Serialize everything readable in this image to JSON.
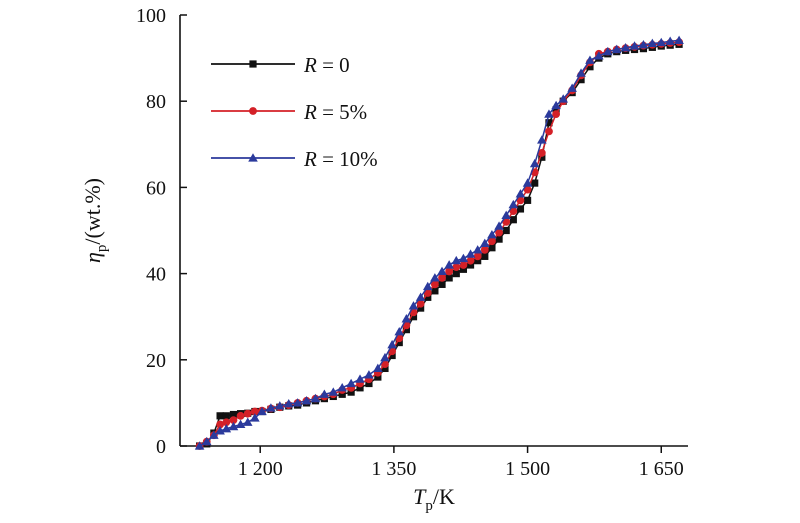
{
  "chart_data": {
    "type": "line",
    "xlabel": {
      "base": "T",
      "sub": "p",
      "unit": "/K"
    },
    "ylabel": {
      "base": "η",
      "sub": "p",
      "unit": "/(wt.%)"
    },
    "xlim": [
      1110,
      1680
    ],
    "ylim": [
      0,
      100
    ],
    "xticks": [
      1200,
      1350,
      1500,
      1650
    ],
    "xtick_labels": [
      "1 200",
      "1 350",
      "1 500",
      "1 650"
    ],
    "yticks": [
      0,
      20,
      40,
      60,
      80,
      100
    ],
    "ytick_labels": [
      "0",
      "20",
      "40",
      "60",
      "80",
      "100"
    ],
    "grid": false,
    "legend_position": "top-left",
    "series": [
      {
        "legend_var": "R",
        "legend_value": " = 0",
        "color": "#111111",
        "marker": "square",
        "x": [
          1132,
          1140,
          1148,
          1155,
          1162,
          1170,
          1178,
          1186,
          1194,
          1202,
          1212,
          1222,
          1232,
          1242,
          1252,
          1262,
          1272,
          1282,
          1292,
          1302,
          1312,
          1322,
          1332,
          1340,
          1348,
          1356,
          1364,
          1372,
          1380,
          1388,
          1396,
          1404,
          1412,
          1420,
          1428,
          1436,
          1444,
          1452,
          1460,
          1468,
          1476,
          1484,
          1492,
          1500,
          1508,
          1516,
          1524,
          1532,
          1540,
          1550,
          1560,
          1570,
          1580,
          1590,
          1600,
          1610,
          1620,
          1630,
          1640,
          1650,
          1660,
          1670
        ],
        "y": [
          0,
          0.5,
          3,
          7,
          7,
          7.3,
          7.5,
          7.6,
          8,
          8,
          8.5,
          9,
          9.3,
          9.5,
          10,
          10.5,
          11,
          11.5,
          12,
          12.5,
          13.5,
          14.5,
          16,
          18,
          21,
          24,
          27,
          30,
          32,
          34.5,
          36,
          37.5,
          39,
          40,
          41,
          42,
          43,
          44,
          46,
          48,
          50,
          52.5,
          55,
          57,
          61,
          67,
          75,
          78,
          80,
          82,
          85,
          88,
          90,
          91,
          91.5,
          91.8,
          92,
          92.2,
          92.5,
          92.8,
          93,
          93.2
        ]
      },
      {
        "legend_var": "R",
        "legend_value": " = 5%",
        "color": "#d42027",
        "marker": "circle",
        "x": [
          1132,
          1140,
          1148,
          1155,
          1162,
          1170,
          1178,
          1186,
          1194,
          1202,
          1212,
          1222,
          1232,
          1242,
          1252,
          1262,
          1272,
          1282,
          1292,
          1302,
          1312,
          1322,
          1332,
          1340,
          1348,
          1356,
          1364,
          1372,
          1380,
          1388,
          1396,
          1404,
          1412,
          1420,
          1428,
          1436,
          1444,
          1452,
          1460,
          1468,
          1476,
          1484,
          1492,
          1500,
          1508,
          1516,
          1524,
          1532,
          1540,
          1550,
          1560,
          1570,
          1580,
          1590,
          1600,
          1610,
          1620,
          1630,
          1640,
          1650,
          1660,
          1670
        ],
        "y": [
          0,
          1,
          2.5,
          5,
          5.5,
          6,
          7,
          7.5,
          8,
          8.2,
          8.7,
          9,
          9.5,
          10,
          10.5,
          11,
          11.5,
          12,
          13,
          13.5,
          14.5,
          15.5,
          17,
          19,
          22,
          25,
          28,
          31,
          33,
          35.5,
          37.5,
          39,
          40.5,
          41.5,
          42,
          43,
          44,
          45.5,
          47.5,
          49.5,
          52,
          54.5,
          57,
          59.5,
          63.5,
          68,
          73,
          77,
          80,
          82.5,
          86,
          89,
          91,
          91.5,
          92,
          92.3,
          92.6,
          92.9,
          93.1,
          93.3,
          93.5,
          93.7
        ]
      },
      {
        "legend_var": "R",
        "legend_value": " = 10%",
        "color": "#2b3a9c",
        "marker": "triangle",
        "x": [
          1132,
          1140,
          1148,
          1155,
          1162,
          1170,
          1178,
          1186,
          1194,
          1202,
          1212,
          1222,
          1232,
          1242,
          1252,
          1262,
          1272,
          1282,
          1292,
          1302,
          1312,
          1322,
          1332,
          1340,
          1348,
          1356,
          1364,
          1372,
          1380,
          1388,
          1396,
          1404,
          1412,
          1420,
          1428,
          1436,
          1444,
          1452,
          1460,
          1468,
          1476,
          1484,
          1492,
          1500,
          1508,
          1516,
          1524,
          1532,
          1540,
          1550,
          1560,
          1570,
          1580,
          1590,
          1600,
          1610,
          1620,
          1630,
          1640,
          1650,
          1660,
          1670
        ],
        "y": [
          0,
          1,
          2.5,
          3.5,
          4,
          4.5,
          5,
          5.5,
          6.5,
          8,
          8.8,
          9.3,
          9.8,
          10,
          10.5,
          11,
          12,
          12.5,
          13.5,
          14.5,
          15.5,
          16.5,
          18,
          20.5,
          23.5,
          26.5,
          29.5,
          32.5,
          34.5,
          37,
          39,
          40.5,
          42,
          43,
          43.5,
          44.5,
          45.5,
          47,
          49,
          51,
          53.5,
          56,
          58.5,
          61,
          65.5,
          71,
          77,
          79,
          80.5,
          83,
          86.5,
          89.5,
          90.5,
          91.5,
          92,
          92.4,
          92.8,
          93.1,
          93.4,
          93.6,
          93.9,
          94.1
        ]
      }
    ]
  }
}
